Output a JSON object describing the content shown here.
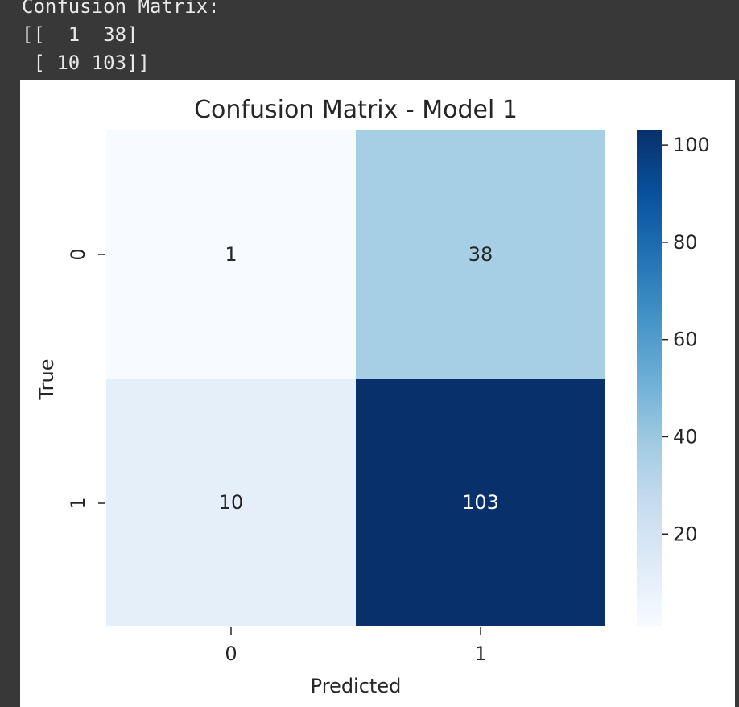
{
  "console": {
    "lines": [
      "Confusion Matrix:",
      "[[  1  38]",
      " [ 10 103]]"
    ]
  },
  "chart_data": {
    "type": "heatmap",
    "title": "Confusion Matrix - Model 1",
    "xlabel": "Predicted",
    "ylabel": "True",
    "x_categories": [
      "0",
      "1"
    ],
    "y_categories": [
      "0",
      "1"
    ],
    "values": [
      [
        1,
        38
      ],
      [
        10,
        103
      ]
    ],
    "colormap": "Blues",
    "colorbar": {
      "min": 1,
      "max": 103,
      "ticks": [
        20,
        40,
        60,
        80,
        100
      ],
      "tick_labels": [
        "20",
        "40",
        "60",
        "80",
        "100"
      ]
    },
    "cell_colors": [
      [
        "#f7fbff",
        "#a6cee4"
      ],
      [
        "#e4eff9",
        "#08306b"
      ]
    ],
    "annotation_colors": [
      [
        "#262626",
        "#262626"
      ],
      [
        "#262626",
        "#ffffff"
      ]
    ]
  }
}
